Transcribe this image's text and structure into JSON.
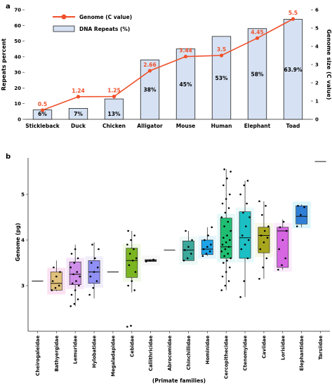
{
  "panel_labels": [
    "a",
    "b"
  ],
  "chart_data": [
    {
      "type": "bar",
      "categories": [
        "Stickleback",
        "Duck",
        "Chicken",
        "Alligator",
        "Mouse",
        "Human",
        "Elephant",
        "Toad"
      ],
      "series": [
        {
          "name": "DNA Repeats (%)",
          "values": [
            6,
            7,
            13,
            38,
            45,
            53,
            58,
            63.9
          ],
          "labels": [
            "6%",
            "7%",
            "13%",
            "38%",
            "45%",
            "53%",
            "58%",
            "63.9%"
          ]
        },
        {
          "name": "Genome (C value)",
          "type": "line",
          "axis": "right",
          "values": [
            0.5,
            1.24,
            1.25,
            2.66,
            3.44,
            3.5,
            4.45,
            5.5
          ],
          "labels": [
            "0.5",
            "1.24",
            "1.25",
            "2.66",
            "3.44",
            "3.5",
            "4.45",
            "5.5"
          ]
        }
      ],
      "ylabel": "Repeats percent",
      "y2label": "Genome size (C value)",
      "ylim": [
        0,
        70
      ],
      "y2lim": [
        0,
        6
      ],
      "yticks": [
        "0",
        "10",
        "20",
        "30",
        "40",
        "50",
        "60",
        "70"
      ],
      "y2ticks": [
        "0",
        "1",
        "2",
        "3",
        "4",
        "5",
        "6"
      ],
      "legend_position": "top-left",
      "colors": {
        "bar_fill": "#d6e2f3",
        "bar_edge": "#222222",
        "line": "#f0502a",
        "line_label": "#f0502a"
      }
    },
    {
      "type": "box",
      "xlabel": "(Primate families)",
      "ylabel": "Genome (pg)",
      "yticks": [
        "3",
        "4",
        "5"
      ],
      "ylim": [
        2.0,
        5.8
      ],
      "categories": [
        "Cheirogaleidae",
        "Bathyergidae",
        "Lemuridae",
        "Hylobatidae",
        "Megaladapidae",
        "Cebidae",
        "Callithricidae",
        "Abrocomidae",
        "Chinchillidae",
        "Hominidae",
        "Cercopithecidae",
        "Ctenomyidae",
        "Caviidae",
        "Lorisidae",
        "Elephantidae",
        "Tarsiidae"
      ],
      "boxes": [
        {
          "min": 3.1,
          "q1": 3.1,
          "median": 3.1,
          "q3": 3.1,
          "max": 3.1,
          "color": "#555555",
          "shade": "#ffffff",
          "points": []
        },
        {
          "min": 2.88,
          "q1": 2.9,
          "median": 3.05,
          "q3": 3.3,
          "max": 3.55,
          "color": "#e0c07a",
          "shade": "#f9d4ec",
          "points": [
            2.9,
            2.95,
            3.0,
            3.1,
            3.2,
            3.3,
            3.4
          ]
        },
        {
          "min": 2.55,
          "q1": 3.02,
          "median": 3.25,
          "q3": 3.52,
          "max": 3.9,
          "color": "#cf8fe9",
          "shade": "#f4dcf6",
          "points": [
            2.55,
            2.6,
            2.7,
            2.8,
            2.9,
            3.0,
            3.05,
            3.1,
            3.2,
            3.25,
            3.3,
            3.4,
            3.5,
            3.6,
            3.7,
            3.8
          ]
        },
        {
          "min": 2.72,
          "q1": 3.05,
          "median": 3.3,
          "q3": 3.55,
          "max": 3.95,
          "color": "#8f8ff5",
          "shade": "#ebe7fb",
          "points": [
            2.8,
            2.95,
            3.1,
            3.2,
            3.3,
            3.4,
            3.5,
            3.6,
            3.8,
            3.9
          ]
        },
        {
          "min": 3.3,
          "q1": 3.3,
          "median": 3.3,
          "q3": 3.3,
          "max": 3.3,
          "color": "#555555",
          "shade": "#ffffff",
          "points": []
        },
        {
          "min": 2.85,
          "q1": 3.18,
          "median": 3.55,
          "q3": 3.82,
          "max": 4.2,
          "color": "#7bb51f",
          "shade": "#e9f7d8",
          "points": [
            2.1,
            2.12,
            2.9,
            3.0,
            3.1,
            3.3,
            3.45,
            3.55,
            3.6,
            3.7,
            3.8,
            3.9,
            4.0,
            4.1,
            4.2
          ]
        },
        {
          "min": 3.53,
          "q1": 3.53,
          "median": 3.55,
          "q3": 3.57,
          "max": 3.58,
          "color": "#555555",
          "shade": "#f3f3f3",
          "points": [
            3.53,
            3.55,
            3.57
          ]
        },
        {
          "min": 3.78,
          "q1": 3.78,
          "median": 3.78,
          "q3": 3.78,
          "max": 3.78,
          "color": "#555555",
          "shade": "#ffffff",
          "points": []
        },
        {
          "min": 3.55,
          "q1": 3.55,
          "median": 3.78,
          "q3": 3.98,
          "max": 4.2,
          "color": "#3aa89a",
          "shade": "#e6f6f3",
          "points": [
            3.55,
            3.6,
            3.7,
            3.78,
            3.85,
            4.0,
            4.2
          ]
        },
        {
          "min": 3.65,
          "q1": 3.68,
          "median": 3.8,
          "q3": 4.0,
          "max": 4.28,
          "color": "#1ca3e8",
          "shade": "#daf1fb",
          "points": [
            3.65,
            3.7,
            3.75,
            3.8,
            3.85,
            3.9,
            4.0,
            4.1,
            4.28
          ]
        },
        {
          "min": 2.9,
          "q1": 3.6,
          "median": 3.85,
          "q3": 4.48,
          "max": 5.55,
          "color": "#1fbf72",
          "shade": "#d9f7f4",
          "points": [
            2.9,
            3.0,
            3.1,
            3.2,
            3.3,
            3.4,
            3.5,
            3.55,
            3.6,
            3.65,
            3.7,
            3.75,
            3.8,
            3.85,
            3.9,
            3.95,
            4.0,
            4.05,
            4.1,
            4.2,
            4.3,
            4.4,
            4.5,
            4.6,
            4.7,
            4.8,
            4.9,
            5.0,
            5.2,
            5.35,
            5.5,
            5.55
          ]
        },
        {
          "min": 2.75,
          "q1": 3.6,
          "median": 4.05,
          "q3": 4.62,
          "max": 5.3,
          "color": "#1cc0c4",
          "shade": "#dff7f8",
          "points": [
            2.75,
            3.1,
            3.6,
            3.8,
            3.9,
            4.0,
            4.1,
            4.3,
            4.5,
            4.6,
            4.8,
            5.0,
            5.2,
            5.3
          ]
        },
        {
          "min": 3.15,
          "q1": 3.72,
          "median": 4.1,
          "q3": 4.28,
          "max": 4.85,
          "color": "#a7a61e",
          "shade": "#f4f4dc",
          "points": [
            3.15,
            3.4,
            3.6,
            3.8,
            3.95,
            4.05,
            4.1,
            4.2,
            4.3,
            4.55,
            4.75,
            4.85
          ]
        },
        {
          "min": 3.35,
          "q1": 3.4,
          "median": 4.2,
          "q3": 4.28,
          "max": 4.45,
          "color": "#d666e2",
          "shade": "#fbe3fb",
          "points": [
            3.35,
            3.45,
            3.6,
            3.8,
            4.0,
            4.2,
            4.28,
            4.4
          ]
        },
        {
          "min": 4.28,
          "q1": 4.35,
          "median": 4.52,
          "q3": 4.75,
          "max": 4.78,
          "color": "#2f7fd6",
          "shade": "#ccf2fa",
          "points": [
            4.3,
            4.55,
            4.72,
            4.75
          ]
        },
        {
          "min": 5.72,
          "q1": 5.72,
          "median": 5.72,
          "q3": 5.72,
          "max": 5.72,
          "color": "#555555",
          "shade": "#ffffff",
          "points": []
        }
      ]
    }
  ]
}
